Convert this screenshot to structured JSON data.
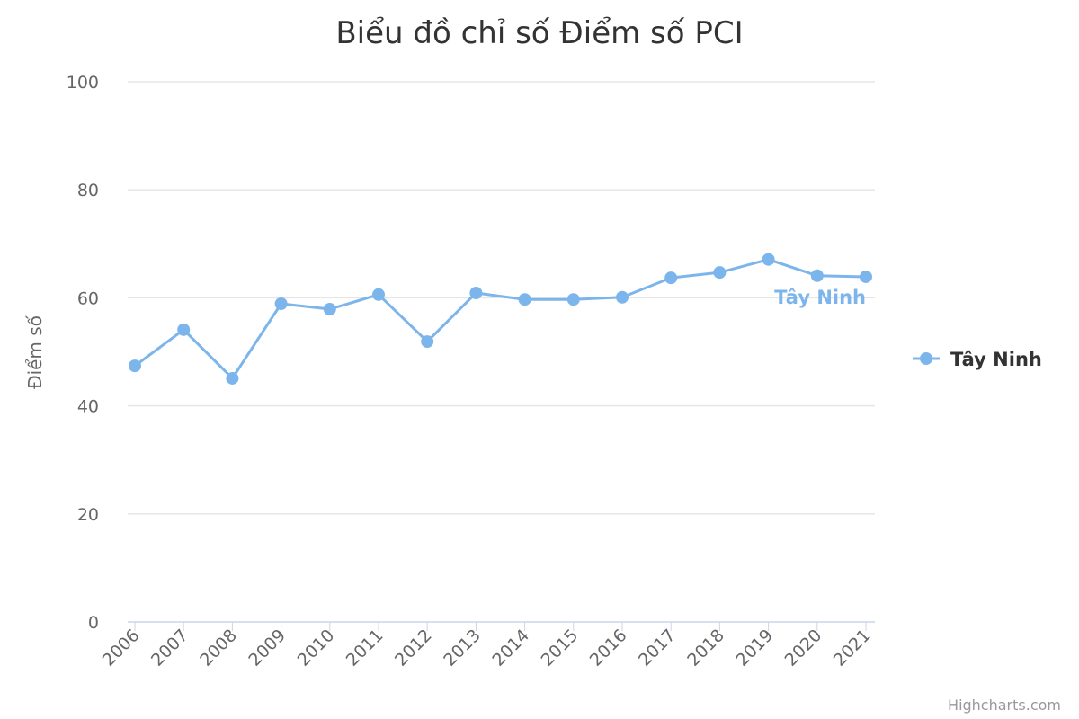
{
  "chart_data": {
    "type": "line",
    "title": "Biểu đồ chỉ số Điểm số PCI",
    "xlabel": "",
    "ylabel": "Điểm số",
    "ylim": [
      0,
      100
    ],
    "yticks": [
      "0",
      "20",
      "40",
      "60",
      "80",
      "100"
    ],
    "categories": [
      "2006",
      "2007",
      "2008",
      "2009",
      "2010",
      "2011",
      "2012",
      "2013",
      "2014",
      "2015",
      "2016",
      "2017",
      "2018",
      "2019",
      "2020",
      "2021"
    ],
    "series": [
      {
        "name": "Tây Ninh",
        "color": "#7cb5ec",
        "values": [
          47.4,
          54.1,
          45.1,
          58.9,
          57.9,
          60.6,
          51.9,
          60.9,
          59.7,
          59.7,
          60.1,
          63.7,
          64.7,
          67.1,
          64.1,
          63.9
        ]
      }
    ],
    "legend": "right",
    "grid": true,
    "credits": "Highcharts.com"
  }
}
